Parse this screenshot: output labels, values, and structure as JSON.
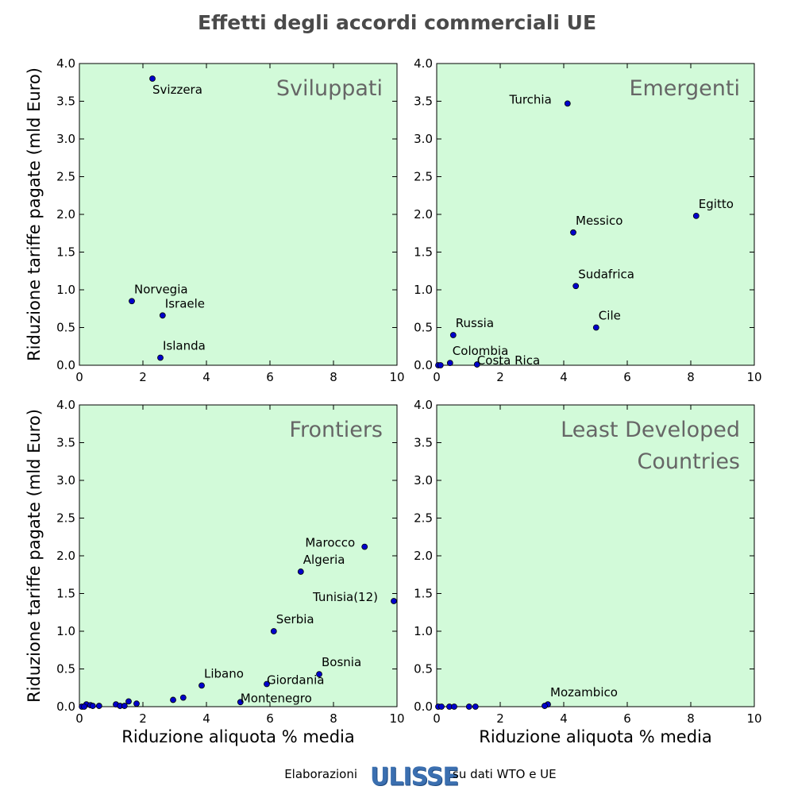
{
  "title": "Effetti degli accordi commerciali UE",
  "footer": {
    "prefix": "Elaborazioni",
    "logo_text": "ULISSE",
    "suffix": "su dati WTO e UE"
  },
  "colors": {
    "panel_background": "#d2fad9",
    "marker": "#0000cc",
    "panel_title": "#666666"
  },
  "chart_data": [
    {
      "type": "scatter",
      "title": "Sviluppati",
      "xlabel": "",
      "ylabel": "Riduzione tariffe pagate (mld Euro)",
      "xlim": [
        0,
        10
      ],
      "ylim": [
        0,
        4
      ],
      "xticks": [
        "0",
        "2",
        "4",
        "6",
        "8",
        "10"
      ],
      "yticks": [
        "0.0",
        "0.5",
        "1.0",
        "1.5",
        "2.0",
        "2.5",
        "3.0",
        "3.5",
        "4.0"
      ],
      "points": [
        {
          "x": 2.3,
          "y": 3.8,
          "label": "Svizzera",
          "label_pos": "below-right"
        },
        {
          "x": 1.65,
          "y": 0.85,
          "label": "Norvegia",
          "label_pos": "above-right"
        },
        {
          "x": 2.62,
          "y": 0.66,
          "label": "Israele",
          "label_pos": "above-right"
        },
        {
          "x": 2.55,
          "y": 0.1,
          "label": "Islanda",
          "label_pos": "above-right"
        }
      ]
    },
    {
      "type": "scatter",
      "title": "Emergenti",
      "xlabel": "",
      "ylabel": "",
      "xlim": [
        0,
        10
      ],
      "ylim": [
        0,
        4
      ],
      "xticks": [
        "0",
        "2",
        "4",
        "6",
        "8",
        "10"
      ],
      "yticks": [
        "0.0",
        "0.5",
        "1.0",
        "1.5",
        "2.0",
        "2.5",
        "3.0",
        "3.5",
        "4.0"
      ],
      "points": [
        {
          "x": 4.12,
          "y": 3.47,
          "label": "Turchia",
          "label_pos": "left"
        },
        {
          "x": 8.17,
          "y": 1.98,
          "label": "Egitto",
          "label_pos": "above-right"
        },
        {
          "x": 4.3,
          "y": 1.76,
          "label": "Messico",
          "label_pos": "above-right"
        },
        {
          "x": 4.38,
          "y": 1.05,
          "label": "Sudafrica",
          "label_pos": "above-right"
        },
        {
          "x": 5.02,
          "y": 0.5,
          "label": "Cile",
          "label_pos": "above-right"
        },
        {
          "x": 0.52,
          "y": 0.4,
          "label": "Russia",
          "label_pos": "above-right"
        },
        {
          "x": 0.42,
          "y": 0.03,
          "label": "Colombia",
          "label_pos": "above-right"
        },
        {
          "x": 1.27,
          "y": 0.01,
          "label": "Costa Rica",
          "label_pos": "right"
        },
        {
          "x": 0.05,
          "y": 0.0,
          "label": ""
        },
        {
          "x": 0.12,
          "y": 0.0,
          "label": ""
        }
      ]
    },
    {
      "type": "scatter",
      "title": "Frontiers",
      "xlabel": "Riduzione aliquota % media",
      "ylabel": "Riduzione tariffe pagate (mld Euro)",
      "xlim": [
        0,
        10
      ],
      "ylim": [
        0,
        4
      ],
      "xticks": [
        "0",
        "2",
        "4",
        "6",
        "8",
        "10"
      ],
      "yticks": [
        "0.0",
        "0.5",
        "1.0",
        "1.5",
        "2.0",
        "2.5",
        "3.0",
        "3.5",
        "4.0"
      ],
      "points": [
        {
          "x": 8.98,
          "y": 2.12,
          "label": "Marocco",
          "label_pos": "above-left"
        },
        {
          "x": 6.97,
          "y": 1.79,
          "label": "Algeria",
          "label_pos": "above-right"
        },
        {
          "x": 9.9,
          "y": 1.4,
          "label": "Tunisia(12)",
          "label_pos": "left"
        },
        {
          "x": 6.12,
          "y": 1.0,
          "label": "Serbia",
          "label_pos": "above-right"
        },
        {
          "x": 7.55,
          "y": 0.43,
          "label": "Bosnia",
          "label_pos": "above-right"
        },
        {
          "x": 3.85,
          "y": 0.28,
          "label": "Libano",
          "label_pos": "above-right"
        },
        {
          "x": 5.9,
          "y": 0.3,
          "label": "Giordania",
          "label_pos": "right"
        },
        {
          "x": 5.07,
          "y": 0.06,
          "label": "Montenegro",
          "label_pos": "right"
        },
        {
          "x": 2.95,
          "y": 0.09,
          "label": ""
        },
        {
          "x": 3.27,
          "y": 0.12,
          "label": ""
        },
        {
          "x": 1.55,
          "y": 0.07,
          "label": ""
        },
        {
          "x": 1.8,
          "y": 0.04,
          "label": ""
        },
        {
          "x": 1.15,
          "y": 0.03,
          "label": ""
        },
        {
          "x": 1.28,
          "y": 0.01,
          "label": ""
        },
        {
          "x": 1.42,
          "y": 0.01,
          "label": ""
        },
        {
          "x": 0.22,
          "y": 0.03,
          "label": ""
        },
        {
          "x": 0.35,
          "y": 0.02,
          "label": ""
        },
        {
          "x": 0.42,
          "y": 0.01,
          "label": ""
        },
        {
          "x": 0.62,
          "y": 0.01,
          "label": ""
        },
        {
          "x": 0.08,
          "y": 0.0,
          "label": ""
        },
        {
          "x": 0.15,
          "y": 0.0,
          "label": ""
        }
      ]
    },
    {
      "type": "scatter",
      "title": "Least Developed Countries",
      "title_lines": [
        "Least Developed",
        "Countries"
      ],
      "xlabel": "Riduzione aliquota % media",
      "ylabel": "",
      "xlim": [
        0,
        10
      ],
      "ylim": [
        0,
        4
      ],
      "xticks": [
        "0",
        "2",
        "4",
        "6",
        "8",
        "10"
      ],
      "yticks": [
        "0.0",
        "0.5",
        "1.0",
        "1.5",
        "2.0",
        "2.5",
        "3.0",
        "3.5",
        "4.0"
      ],
      "points": [
        {
          "x": 3.5,
          "y": 0.03,
          "label": "Mozambico",
          "label_pos": "above-right"
        },
        {
          "x": 3.4,
          "y": 0.01,
          "label": ""
        },
        {
          "x": 0.05,
          "y": 0.0,
          "label": ""
        },
        {
          "x": 0.15,
          "y": 0.0,
          "label": ""
        },
        {
          "x": 0.4,
          "y": 0.0,
          "label": ""
        },
        {
          "x": 0.55,
          "y": 0.0,
          "label": ""
        },
        {
          "x": 1.02,
          "y": 0.0,
          "label": ""
        },
        {
          "x": 1.22,
          "y": 0.0,
          "label": ""
        }
      ]
    }
  ]
}
